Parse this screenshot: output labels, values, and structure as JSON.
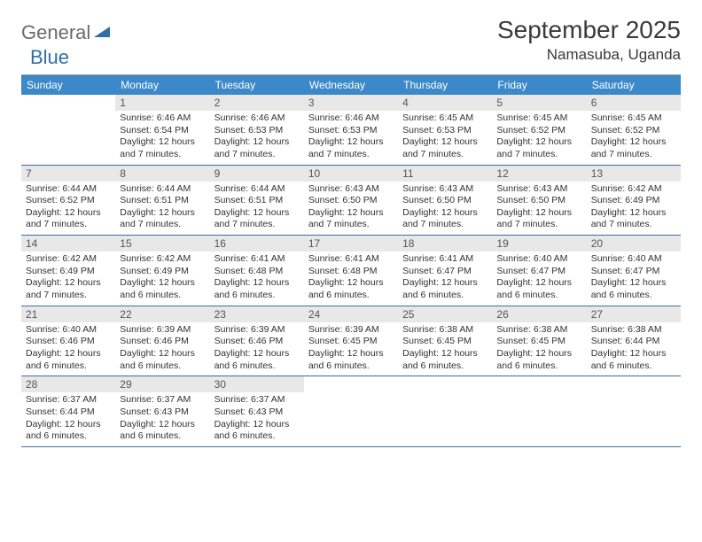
{
  "logo": {
    "word1": "General",
    "word2": "Blue"
  },
  "title": "September 2025",
  "location": "Namasuba, Uganda",
  "colors": {
    "header_bg": "#3b89c9",
    "header_text": "#ffffff",
    "daynum_bg": "#e8e8e8",
    "daynum_text": "#555555",
    "body_text": "#333333",
    "rule": "#3b6fa0",
    "logo_gray": "#6b6b6b",
    "logo_blue": "#2f6fa8",
    "title_color": "#3a3a3a"
  },
  "fonts": {
    "title_size": 28,
    "location_size": 17,
    "dayheader_size": 12,
    "daynum_size": 12,
    "body_size": 10.5
  },
  "day_labels": [
    "Sunday",
    "Monday",
    "Tuesday",
    "Wednesday",
    "Thursday",
    "Friday",
    "Saturday"
  ],
  "weeks": [
    [
      {
        "n": "",
        "sr": "",
        "ss": "",
        "dl": ""
      },
      {
        "n": "1",
        "sr": "6:46 AM",
        "ss": "6:54 PM",
        "dl": "12 hours and 7 minutes."
      },
      {
        "n": "2",
        "sr": "6:46 AM",
        "ss": "6:53 PM",
        "dl": "12 hours and 7 minutes."
      },
      {
        "n": "3",
        "sr": "6:46 AM",
        "ss": "6:53 PM",
        "dl": "12 hours and 7 minutes."
      },
      {
        "n": "4",
        "sr": "6:45 AM",
        "ss": "6:53 PM",
        "dl": "12 hours and 7 minutes."
      },
      {
        "n": "5",
        "sr": "6:45 AM",
        "ss": "6:52 PM",
        "dl": "12 hours and 7 minutes."
      },
      {
        "n": "6",
        "sr": "6:45 AM",
        "ss": "6:52 PM",
        "dl": "12 hours and 7 minutes."
      }
    ],
    [
      {
        "n": "7",
        "sr": "6:44 AM",
        "ss": "6:52 PM",
        "dl": "12 hours and 7 minutes."
      },
      {
        "n": "8",
        "sr": "6:44 AM",
        "ss": "6:51 PM",
        "dl": "12 hours and 7 minutes."
      },
      {
        "n": "9",
        "sr": "6:44 AM",
        "ss": "6:51 PM",
        "dl": "12 hours and 7 minutes."
      },
      {
        "n": "10",
        "sr": "6:43 AM",
        "ss": "6:50 PM",
        "dl": "12 hours and 7 minutes."
      },
      {
        "n": "11",
        "sr": "6:43 AM",
        "ss": "6:50 PM",
        "dl": "12 hours and 7 minutes."
      },
      {
        "n": "12",
        "sr": "6:43 AM",
        "ss": "6:50 PM",
        "dl": "12 hours and 7 minutes."
      },
      {
        "n": "13",
        "sr": "6:42 AM",
        "ss": "6:49 PM",
        "dl": "12 hours and 7 minutes."
      }
    ],
    [
      {
        "n": "14",
        "sr": "6:42 AM",
        "ss": "6:49 PM",
        "dl": "12 hours and 7 minutes."
      },
      {
        "n": "15",
        "sr": "6:42 AM",
        "ss": "6:49 PM",
        "dl": "12 hours and 6 minutes."
      },
      {
        "n": "16",
        "sr": "6:41 AM",
        "ss": "6:48 PM",
        "dl": "12 hours and 6 minutes."
      },
      {
        "n": "17",
        "sr": "6:41 AM",
        "ss": "6:48 PM",
        "dl": "12 hours and 6 minutes."
      },
      {
        "n": "18",
        "sr": "6:41 AM",
        "ss": "6:47 PM",
        "dl": "12 hours and 6 minutes."
      },
      {
        "n": "19",
        "sr": "6:40 AM",
        "ss": "6:47 PM",
        "dl": "12 hours and 6 minutes."
      },
      {
        "n": "20",
        "sr": "6:40 AM",
        "ss": "6:47 PM",
        "dl": "12 hours and 6 minutes."
      }
    ],
    [
      {
        "n": "21",
        "sr": "6:40 AM",
        "ss": "6:46 PM",
        "dl": "12 hours and 6 minutes."
      },
      {
        "n": "22",
        "sr": "6:39 AM",
        "ss": "6:46 PM",
        "dl": "12 hours and 6 minutes."
      },
      {
        "n": "23",
        "sr": "6:39 AM",
        "ss": "6:46 PM",
        "dl": "12 hours and 6 minutes."
      },
      {
        "n": "24",
        "sr": "6:39 AM",
        "ss": "6:45 PM",
        "dl": "12 hours and 6 minutes."
      },
      {
        "n": "25",
        "sr": "6:38 AM",
        "ss": "6:45 PM",
        "dl": "12 hours and 6 minutes."
      },
      {
        "n": "26",
        "sr": "6:38 AM",
        "ss": "6:45 PM",
        "dl": "12 hours and 6 minutes."
      },
      {
        "n": "27",
        "sr": "6:38 AM",
        "ss": "6:44 PM",
        "dl": "12 hours and 6 minutes."
      }
    ],
    [
      {
        "n": "28",
        "sr": "6:37 AM",
        "ss": "6:44 PM",
        "dl": "12 hours and 6 minutes."
      },
      {
        "n": "29",
        "sr": "6:37 AM",
        "ss": "6:43 PM",
        "dl": "12 hours and 6 minutes."
      },
      {
        "n": "30",
        "sr": "6:37 AM",
        "ss": "6:43 PM",
        "dl": "12 hours and 6 minutes."
      },
      {
        "n": "",
        "sr": "",
        "ss": "",
        "dl": ""
      },
      {
        "n": "",
        "sr": "",
        "ss": "",
        "dl": ""
      },
      {
        "n": "",
        "sr": "",
        "ss": "",
        "dl": ""
      },
      {
        "n": "",
        "sr": "",
        "ss": "",
        "dl": ""
      }
    ]
  ]
}
